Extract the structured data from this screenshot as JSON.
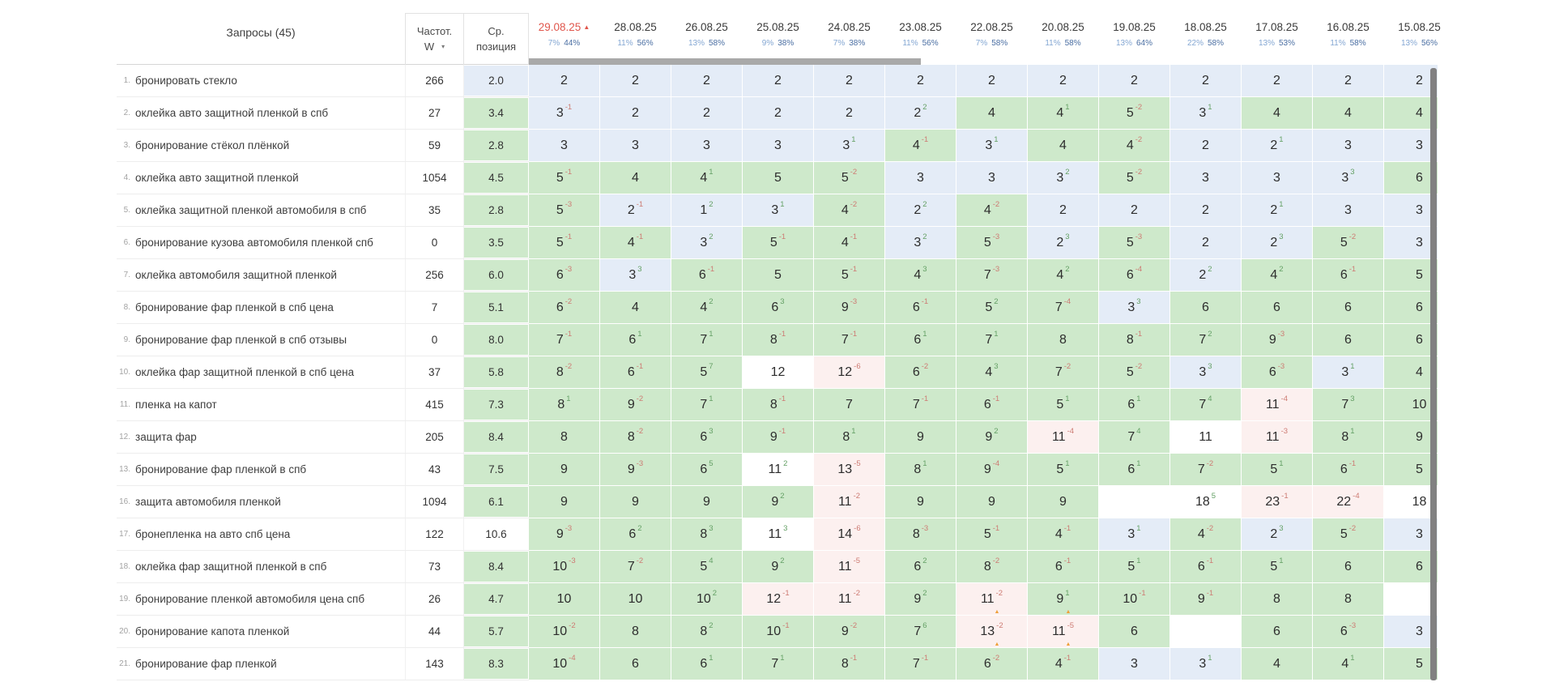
{
  "header": {
    "queries_label": "Запросы (45)",
    "freq_line1": "Частот.",
    "freq_line2": "W",
    "avg_line1": "Ср.",
    "avg_line2": "позиция",
    "dates": [
      {
        "label": "29.08.25",
        "pct1": "7%",
        "pct2": "44%",
        "sorted": true
      },
      {
        "label": "28.08.25",
        "pct1": "11%",
        "pct2": "56%"
      },
      {
        "label": "26.08.25",
        "pct1": "13%",
        "pct2": "58%"
      },
      {
        "label": "25.08.25",
        "pct1": "9%",
        "pct2": "38%"
      },
      {
        "label": "24.08.25",
        "pct1": "7%",
        "pct2": "38%"
      },
      {
        "label": "23.08.25",
        "pct1": "11%",
        "pct2": "56%"
      },
      {
        "label": "22.08.25",
        "pct1": "7%",
        "pct2": "58%"
      },
      {
        "label": "20.08.25",
        "pct1": "11%",
        "pct2": "58%"
      },
      {
        "label": "19.08.25",
        "pct1": "13%",
        "pct2": "64%"
      },
      {
        "label": "18.08.25",
        "pct1": "22%",
        "pct2": "58%"
      },
      {
        "label": "17.08.25",
        "pct1": "13%",
        "pct2": "53%"
      },
      {
        "label": "16.08.25",
        "pct1": "11%",
        "pct2": "58%"
      },
      {
        "label": "15.08.25",
        "pct1": "13%",
        "pct2": "56%"
      }
    ]
  },
  "rows": [
    {
      "num": "1.",
      "query": "бронировать стекло",
      "freq": "266",
      "avg": "2.0",
      "avg_color": "blue",
      "positions": [
        2,
        2,
        2,
        2,
        2,
        2,
        2,
        2,
        2,
        2,
        2,
        2,
        2
      ]
    },
    {
      "num": "2.",
      "query": "оклейка авто защитной пленкой в спб",
      "freq": "27",
      "avg": "3.4",
      "avg_color": "green",
      "positions": [
        3,
        2,
        2,
        2,
        2,
        2,
        4,
        4,
        5,
        3,
        4,
        4,
        4
      ]
    },
    {
      "num": "3.",
      "query": "бронирование стёкол плёнкой",
      "freq": "59",
      "avg": "2.8",
      "avg_color": "green",
      "positions": [
        3,
        3,
        3,
        3,
        3,
        4,
        3,
        4,
        4,
        2,
        2,
        3,
        3
      ]
    },
    {
      "num": "4.",
      "query": "оклейка авто защитной пленкой",
      "freq": "1054",
      "avg": "4.5",
      "avg_color": "green",
      "positions": [
        5,
        4,
        4,
        5,
        5,
        3,
        3,
        3,
        5,
        3,
        3,
        3,
        6
      ]
    },
    {
      "num": "5.",
      "query": "оклейка защитной пленкой автомобиля в спб",
      "freq": "35",
      "avg": "2.8",
      "avg_color": "green",
      "positions": [
        5,
        2,
        1,
        3,
        4,
        2,
        4,
        2,
        2,
        2,
        2,
        3,
        3
      ]
    },
    {
      "num": "6.",
      "query": "бронирование кузова автомобиля пленкой спб",
      "freq": "0",
      "avg": "3.5",
      "avg_color": "green",
      "positions": [
        5,
        4,
        3,
        5,
        4,
        3,
        5,
        2,
        5,
        2,
        2,
        5,
        3
      ]
    },
    {
      "num": "7.",
      "query": "оклейка автомобиля защитной пленкой",
      "freq": "256",
      "avg": "6.0",
      "avg_color": "green",
      "positions": [
        6,
        3,
        6,
        5,
        5,
        4,
        7,
        4,
        6,
        2,
        4,
        6,
        5
      ]
    },
    {
      "num": "8.",
      "query": "бронирование фар пленкой в спб цена",
      "freq": "7",
      "avg": "5.1",
      "avg_color": "green",
      "positions": [
        6,
        4,
        4,
        6,
        9,
        6,
        5,
        7,
        3,
        6,
        6,
        6,
        6
      ]
    },
    {
      "num": "9.",
      "query": "бронирование фар пленкой в спб отзывы",
      "freq": "0",
      "avg": "8.0",
      "avg_color": "green",
      "positions": [
        7,
        6,
        7,
        8,
        7,
        6,
        7,
        8,
        8,
        7,
        9,
        6,
        6
      ]
    },
    {
      "num": "10.",
      "query": "оклейка фар защитной пленкой в спб цена",
      "freq": "37",
      "avg": "5.8",
      "avg_color": "green",
      "positions": [
        8,
        6,
        5,
        12,
        12,
        6,
        4,
        7,
        5,
        3,
        6,
        3,
        4
      ]
    },
    {
      "num": "11.",
      "query": "пленка на капот",
      "freq": "415",
      "avg": "7.3",
      "avg_color": "green",
      "positions": [
        8,
        9,
        7,
        8,
        7,
        7,
        6,
        5,
        6,
        7,
        11,
        7,
        10
      ]
    },
    {
      "num": "12.",
      "query": "защита фар",
      "freq": "205",
      "avg": "8.4",
      "avg_color": "green",
      "positions": [
        8,
        8,
        6,
        9,
        8,
        9,
        9,
        11,
        7,
        11,
        11,
        8,
        9
      ]
    },
    {
      "num": "13.",
      "query": "бронирование фар пленкой в спб",
      "freq": "43",
      "avg": "7.5",
      "avg_color": "green",
      "positions": [
        9,
        9,
        6,
        11,
        13,
        8,
        9,
        5,
        6,
        7,
        5,
        6,
        5
      ]
    },
    {
      "num": "16.",
      "query": "защита автомобиля пленкой",
      "freq": "1094",
      "avg": "6.1",
      "avg_color": "green",
      "positions": [
        9,
        9,
        9,
        9,
        11,
        9,
        9,
        9,
        null,
        18,
        23,
        22,
        18
      ]
    },
    {
      "num": "17.",
      "query": "бронепленка на авто спб цена",
      "freq": "122",
      "avg": "10.6",
      "avg_color": "white",
      "positions": [
        9,
        6,
        8,
        11,
        14,
        8,
        5,
        4,
        3,
        4,
        2,
        5,
        3
      ]
    },
    {
      "num": "18.",
      "query": "оклейка фар защитной пленкой в спб",
      "freq": "73",
      "avg": "8.4",
      "avg_color": "green",
      "positions": [
        10,
        7,
        5,
        9,
        11,
        6,
        8,
        6,
        5,
        6,
        5,
        6,
        6
      ]
    },
    {
      "num": "19.",
      "query": "бронирование пленкой автомобиля цена спб",
      "freq": "26",
      "avg": "4.7",
      "avg_color": "green",
      "positions": [
        10,
        10,
        10,
        12,
        11,
        9,
        11,
        9,
        10,
        9,
        8,
        8,
        null
      ],
      "warns": [
        6,
        7
      ]
    },
    {
      "num": "20.",
      "query": "бронирование капота пленкой",
      "freq": "44",
      "avg": "5.7",
      "avg_color": "green",
      "positions": [
        10,
        8,
        8,
        10,
        9,
        7,
        13,
        11,
        6,
        null,
        6,
        6,
        3
      ],
      "warns": [
        6,
        7
      ]
    },
    {
      "num": "21.",
      "query": "бронирование фар пленкой",
      "freq": "143",
      "avg": "8.3",
      "avg_color": "green",
      "positions": [
        10,
        6,
        6,
        7,
        8,
        7,
        6,
        4,
        3,
        3,
        4,
        4,
        5
      ]
    }
  ],
  "colors": {
    "cell_top3": "#e4ecf7",
    "cell_top10": "#cee9cb",
    "cell_out": "#ffffff",
    "cell_drop": "#fcf0ef",
    "delta_up": "#64a065",
    "delta_down": "#cd7b73",
    "sorted_date": "#e0564c",
    "warning": "#efa03a"
  }
}
